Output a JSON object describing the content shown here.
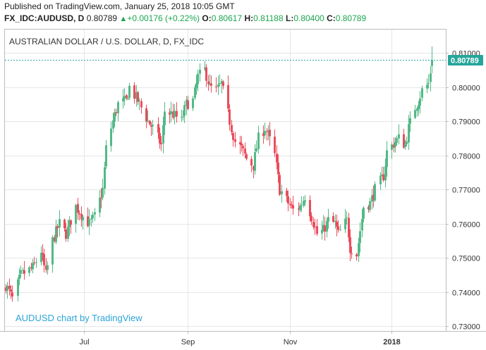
{
  "header": {
    "published": "Published on TradingView.com, January 25, 2018 10:05 GMT",
    "symbol": "FX_IDC:AUDUSD, D",
    "last": "0.80789",
    "change_arrow": "▲",
    "change": "+0.00176 (+0.22%)",
    "o_label": "O:",
    "o_value": "0.80617",
    "h_label": "H:",
    "h_value": "0.81188",
    "l_label": "L:",
    "l_value": "0.80400",
    "c_label": "C:",
    "c_value": "0.80789"
  },
  "colors": {
    "up": "#53b987",
    "down": "#eb4d5c",
    "grid": "#e6e6e6",
    "price_line": "#26a69a",
    "price_tag": "#26a69a",
    "watermark": "#2ba5d8"
  },
  "chart_data": {
    "type": "candlestick",
    "title": "AUSTRALIAN DOLLAR / U.S. DOLLAR, D, FX_IDC",
    "watermark": "AUDUSD chart by TradingView",
    "x_tick_labels": [
      "Jul",
      "Sep",
      "Nov",
      "2018"
    ],
    "y_tick_labels": [
      "0.81000",
      "0.80000",
      "0.79000",
      "0.78000",
      "0.77000",
      "0.76000",
      "0.75000",
      "0.74000",
      "0.73000"
    ],
    "ylim": [
      0.7285,
      0.8155
    ],
    "grid": true,
    "last_price_label": "0.80789",
    "anchors": [
      {
        "date": "2017-05-15",
        "close": 0.742
      },
      {
        "date": "2017-05-19",
        "close": 0.738
      },
      {
        "date": "2017-05-24",
        "close": 0.745
      },
      {
        "date": "2017-05-31",
        "close": 0.747
      },
      {
        "date": "2017-06-05",
        "close": 0.752
      },
      {
        "date": "2017-06-08",
        "close": 0.745
      },
      {
        "date": "2017-06-12",
        "close": 0.755
      },
      {
        "date": "2017-06-16",
        "close": 0.76
      },
      {
        "date": "2017-06-20",
        "close": 0.757
      },
      {
        "date": "2017-06-26",
        "close": 0.765
      },
      {
        "date": "2017-06-30",
        "close": 0.762
      },
      {
        "date": "2017-07-04",
        "close": 0.76
      },
      {
        "date": "2017-07-07",
        "close": 0.762
      },
      {
        "date": "2017-07-12",
        "close": 0.77
      },
      {
        "date": "2017-07-14",
        "close": 0.782
      },
      {
        "date": "2017-07-18",
        "close": 0.79
      },
      {
        "date": "2017-07-21",
        "close": 0.795
      },
      {
        "date": "2017-07-26",
        "close": 0.796
      },
      {
        "date": "2017-07-28",
        "close": 0.8
      },
      {
        "date": "2017-08-02",
        "close": 0.796
      },
      {
        "date": "2017-08-04",
        "close": 0.794
      },
      {
        "date": "2017-08-08",
        "close": 0.79
      },
      {
        "date": "2017-08-11",
        "close": 0.788
      },
      {
        "date": "2017-08-16",
        "close": 0.783
      },
      {
        "date": "2017-08-18",
        "close": 0.793
      },
      {
        "date": "2017-08-23",
        "close": 0.792
      },
      {
        "date": "2017-08-28",
        "close": 0.79
      },
      {
        "date": "2017-08-31",
        "close": 0.795
      },
      {
        "date": "2017-09-04",
        "close": 0.796
      },
      {
        "date": "2017-09-07",
        "close": 0.803
      },
      {
        "date": "2017-09-11",
        "close": 0.805
      },
      {
        "date": "2017-09-14",
        "close": 0.8
      },
      {
        "date": "2017-09-18",
        "close": 0.799
      },
      {
        "date": "2017-09-21",
        "close": 0.801
      },
      {
        "date": "2017-09-26",
        "close": 0.79
      },
      {
        "date": "2017-09-29",
        "close": 0.784
      },
      {
        "date": "2017-10-03",
        "close": 0.782
      },
      {
        "date": "2017-10-06",
        "close": 0.779
      },
      {
        "date": "2017-10-10",
        "close": 0.777
      },
      {
        "date": "2017-10-13",
        "close": 0.785
      },
      {
        "date": "2017-10-17",
        "close": 0.788
      },
      {
        "date": "2017-10-19",
        "close": 0.786
      },
      {
        "date": "2017-10-23",
        "close": 0.78
      },
      {
        "date": "2017-10-26",
        "close": 0.77
      },
      {
        "date": "2017-10-31",
        "close": 0.766
      },
      {
        "date": "2017-11-03",
        "close": 0.764
      },
      {
        "date": "2017-11-07",
        "close": 0.765
      },
      {
        "date": "2017-11-10",
        "close": 0.768
      },
      {
        "date": "2017-11-14",
        "close": 0.762
      },
      {
        "date": "2017-11-17",
        "close": 0.757
      },
      {
        "date": "2017-11-21",
        "close": 0.758
      },
      {
        "date": "2017-11-24",
        "close": 0.761
      },
      {
        "date": "2017-11-28",
        "close": 0.76
      },
      {
        "date": "2017-11-30",
        "close": 0.757
      },
      {
        "date": "2017-12-05",
        "close": 0.761
      },
      {
        "date": "2017-12-07",
        "close": 0.753
      },
      {
        "date": "2017-12-11",
        "close": 0.751
      },
      {
        "date": "2017-12-13",
        "close": 0.758
      },
      {
        "date": "2017-12-15",
        "close": 0.765
      },
      {
        "date": "2017-12-19",
        "close": 0.766
      },
      {
        "date": "2017-12-22",
        "close": 0.77
      },
      {
        "date": "2017-12-27",
        "close": 0.774
      },
      {
        "date": "2017-12-29",
        "close": 0.781
      },
      {
        "date": "2018-01-03",
        "close": 0.784
      },
      {
        "date": "2018-01-05",
        "close": 0.785
      },
      {
        "date": "2018-01-09",
        "close": 0.783
      },
      {
        "date": "2018-01-11",
        "close": 0.788
      },
      {
        "date": "2018-01-15",
        "close": 0.794
      },
      {
        "date": "2018-01-17",
        "close": 0.796
      },
      {
        "date": "2018-01-19",
        "close": 0.799
      },
      {
        "date": "2018-01-23",
        "close": 0.801
      },
      {
        "date": "2018-01-25",
        "close": 0.8079
      }
    ]
  }
}
